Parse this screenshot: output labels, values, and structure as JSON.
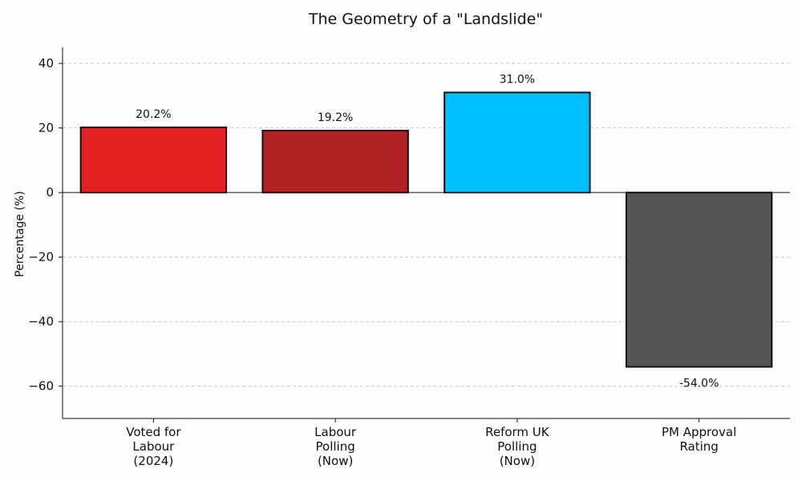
{
  "chart_data": {
    "type": "bar",
    "title": "The Geometry of a \"Landslide\"",
    "xlabel": "",
    "ylabel": "Percentage (%)",
    "ylim": [
      -70,
      45
    ],
    "yticks": [
      -60,
      -40,
      -20,
      0,
      20,
      40
    ],
    "ytick_labels": [
      "−60",
      "−40",
      "−20",
      "0",
      "20",
      "40"
    ],
    "grid": true,
    "categories": [
      [
        "Voted for",
        "Labour",
        "(2024)"
      ],
      [
        "Labour",
        "Polling",
        "(Now)"
      ],
      [
        "Reform UK",
        "Polling",
        "(Now)"
      ],
      [
        "PM Approval",
        "Rating"
      ]
    ],
    "values": [
      20.2,
      19.2,
      31.0,
      -54.0
    ],
    "value_labels": [
      "20.2%",
      "19.2%",
      "31.0%",
      "-54.0%"
    ],
    "colors": [
      "#e32122",
      "#b22225",
      "#00bfff",
      "#555555"
    ]
  }
}
